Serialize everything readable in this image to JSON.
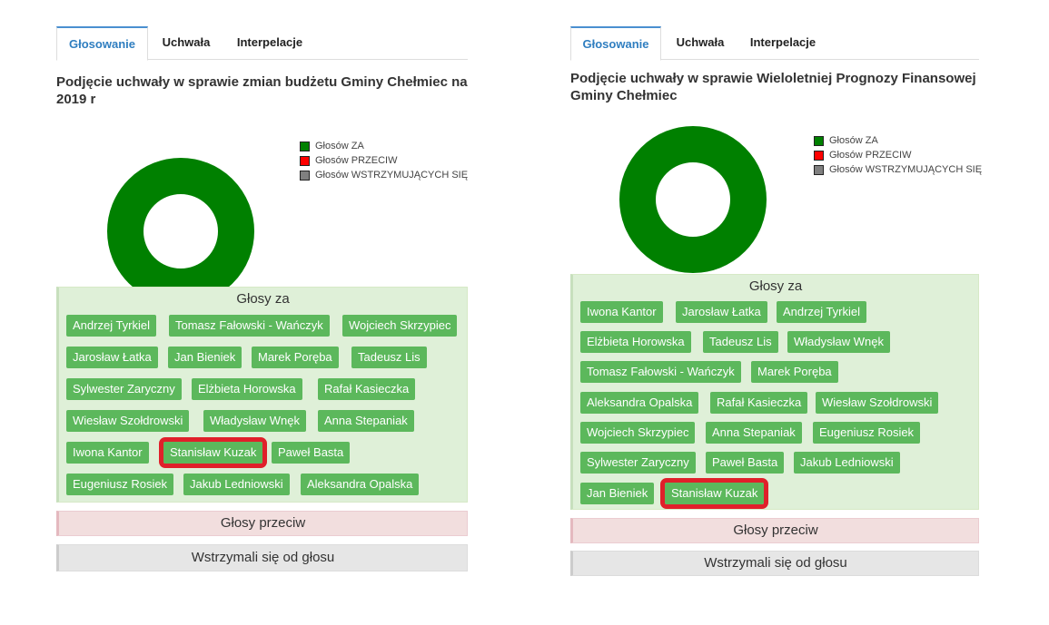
{
  "tabs": [
    "Głosowanie",
    "Uchwała",
    "Interpelacje"
  ],
  "legend": {
    "za": "Głosów ZA",
    "przeciw": "Głosów PRZECIW",
    "wstrzymujacych": "Głosów WSTRZYMUJĄCYCH SIĘ"
  },
  "colors": {
    "za": "#008000",
    "przeciw": "#ff0000",
    "wstrzymujacych": "#808080",
    "chip": "#5cb85c",
    "marker": "#e0202a"
  },
  "left": {
    "title_line1": "Podjęcie uchwały w sprawie zmian budżetu Gminy Chełmiec na",
    "title_line2": "2019 r",
    "za_heading": "Głosy za",
    "przeciw_heading": "Głosy przeciw",
    "wstrz_heading": "Wstrzymali się od głosu",
    "votes_za": [
      "Andrzej Tyrkiel",
      "Tomasz Fałowski - Wańczyk",
      "Wojciech Skrzypiec",
      "Jarosław Łatka",
      "Jan Bieniek",
      "Marek Poręba",
      "Tadeusz Lis",
      "Sylwester Zaryczny",
      "Elżbieta Horowska",
      "Rafał Kasieczka",
      "Wiesław Szołdrowski",
      "Władysław Wnęk",
      "Anna Stepaniak",
      "Iwona Kantor",
      "Stanisław Kuzak",
      "Paweł Basta",
      "Eugeniusz Rosiek",
      "Jakub Ledniowski",
      "Aleksandra Opalska"
    ]
  },
  "right": {
    "title_line1": "Podjęcie uchwały w sprawie Wieloletniej Prognozy Finansowej",
    "title_line2": "Gminy Chełmiec",
    "za_heading": "Głosy za",
    "przeciw_heading": "Głosy przeciw",
    "wstrz_heading": "Wstrzymali się od głosu",
    "votes_za": [
      "Iwona Kantor",
      "Jarosław Łatka",
      "Andrzej Tyrkiel",
      "Elżbieta Horowska",
      "Tadeusz Lis",
      "Władysław Wnęk",
      "Tomasz Fałowski - Wańczyk",
      "Marek Poręba",
      "Aleksandra Opalska",
      "Rafał Kasieczka",
      "Wiesław Szołdrowski",
      "Wojciech Skrzypiec",
      "Anna Stepaniak",
      "Eugeniusz Rosiek",
      "Sylwester Zaryczny",
      "Paweł Basta",
      "Jakub Ledniowski",
      "Jan Bieniek",
      "Stanisław Kuzak"
    ]
  },
  "highlighted_voter": "Stanisław Kuzak"
}
